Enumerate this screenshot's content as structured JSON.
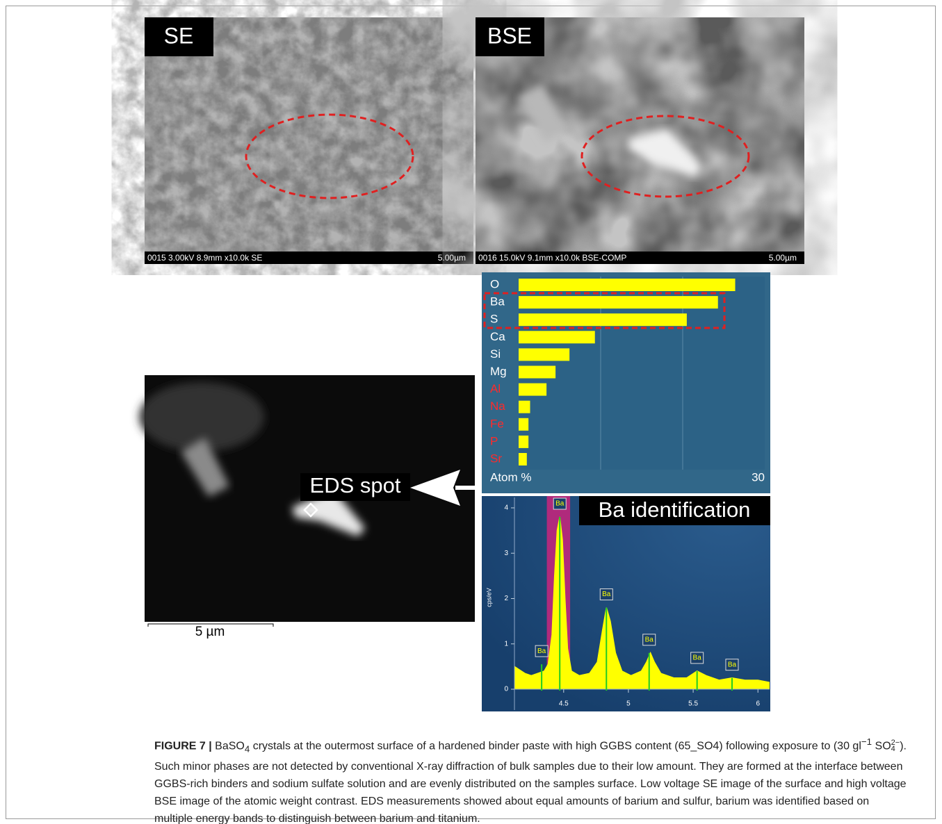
{
  "panels": {
    "se": {
      "label": "SE",
      "info": "0015 3.00kV 8.9mm x10.0k SE",
      "scale": "5.00µm"
    },
    "bse": {
      "label": "BSE",
      "info": "0016 15.0kV 9.1mm x10.0k BSE-COMP",
      "scale": "5.00µm"
    },
    "eds": {
      "label": "EDS spot",
      "scale": "5 µm"
    }
  },
  "composition": {
    "type": "bar",
    "axis_label": "Atom %",
    "xlim": [
      0,
      30
    ],
    "grid": [
      10,
      20
    ],
    "bar_color": "#ffff00",
    "elements": [
      {
        "name": "O",
        "color": "#ffffff",
        "value": 26.4
      },
      {
        "name": "Ba",
        "color": "#ffffff",
        "value": 24.3
      },
      {
        "name": "S",
        "color": "#ffffff",
        "value": 20.5
      },
      {
        "name": "Ca",
        "color": "#ffffff",
        "value": 9.3
      },
      {
        "name": "Si",
        "color": "#ffffff",
        "value": 6.2
      },
      {
        "name": "Mg",
        "color": "#ffffff",
        "value": 4.5
      },
      {
        "name": "Al",
        "color": "#ff2a2a",
        "value": 3.4
      },
      {
        "name": "Na",
        "color": "#ff2a2a",
        "value": 1.4
      },
      {
        "name": "Fe",
        "color": "#ff2a2a",
        "value": 1.2
      },
      {
        "name": "P",
        "color": "#ff2a2a",
        "value": 1.2
      },
      {
        "name": "Sr",
        "color": "#ff2a2a",
        "value": 1.0
      }
    ]
  },
  "spectrum": {
    "type": "area",
    "title": "Ba identification",
    "y_label": "cps/eV",
    "color": "#ffff00",
    "xlim": [
      4.12,
      6.09
    ],
    "ylim": [
      -0.49,
      4.26
    ],
    "xticks": [
      4.5,
      5,
      5.5,
      6
    ],
    "yticks": [
      0,
      1,
      2,
      3,
      4
    ],
    "roi": [
      4.37,
      4.55
    ],
    "x": [
      4.12,
      4.2,
      4.25,
      4.3,
      4.35,
      4.38,
      4.41,
      4.43,
      4.45,
      4.47,
      4.49,
      4.51,
      4.53,
      4.56,
      4.62,
      4.7,
      4.76,
      4.8,
      4.83,
      4.86,
      4.9,
      4.95,
      5.02,
      5.1,
      5.14,
      5.17,
      5.2,
      5.25,
      5.35,
      5.45,
      5.53,
      5.6,
      5.7,
      5.8,
      5.9,
      6.0,
      6.09
    ],
    "y": [
      0.5,
      0.35,
      0.3,
      0.35,
      0.4,
      0.55,
      1.2,
      2.5,
      3.5,
      3.8,
      3.3,
      2.0,
      0.9,
      0.4,
      0.3,
      0.35,
      0.6,
      1.3,
      1.8,
      1.5,
      0.8,
      0.4,
      0.3,
      0.4,
      0.6,
      0.8,
      0.6,
      0.35,
      0.25,
      0.25,
      0.4,
      0.3,
      0.2,
      0.25,
      0.2,
      0.2,
      0.15
    ],
    "peaks": [
      {
        "label": "Ba",
        "x": 4.33,
        "y": 0.55
      },
      {
        "label": "Ba",
        "x": 4.47,
        "y": 3.8
      },
      {
        "label": "Ba",
        "x": 4.83,
        "y": 1.8
      },
      {
        "label": "Ba",
        "x": 5.16,
        "y": 0.8
      },
      {
        "label": "Ba",
        "x": 5.53,
        "y": 0.4
      },
      {
        "label": "Ba",
        "x": 5.8,
        "y": 0.25
      }
    ]
  },
  "caption": {
    "label": "FIGURE 7 |",
    "t0": " BaSO",
    "sub0": "4",
    "t1": " crystals at the outermost surface of a hardened binder paste with high GGBS content (65_SO4) following exposure to (30 gl",
    "sup1": "−1",
    "t2": " SO",
    "sup2": "2−",
    "sub2": "4",
    "t3": "). Such minor phases are not detected by conventional X-ray diffraction of bulk samples due to their low amount. They are formed at the interface between GGBS-rich binders and sodium sulfate solution and are evenly distributed on the samples surface. Low voltage SE image of the surface and high voltage BSE image of the atomic weight contrast. EDS measurements showed about equal amounts of barium and sulfur, barium was identified based on multiple energy bands to distinguish between barium and titanium."
  }
}
